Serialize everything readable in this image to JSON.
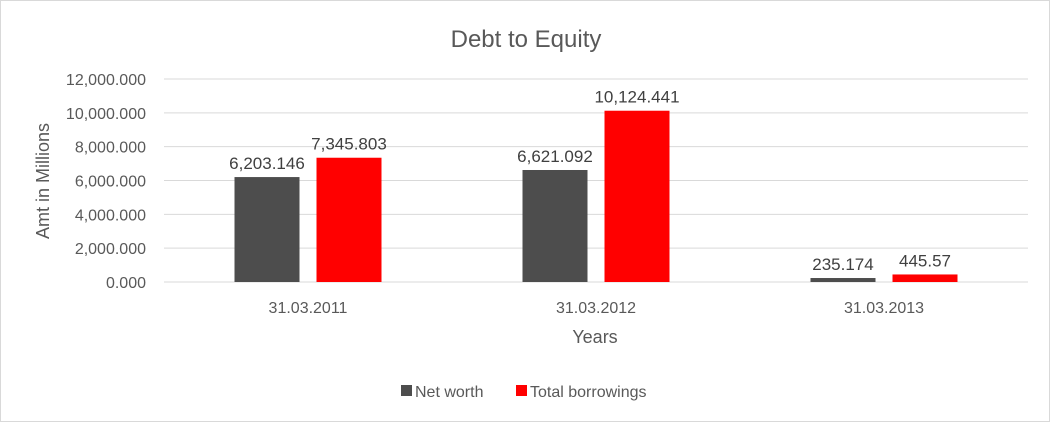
{
  "chart_data": {
    "type": "bar",
    "title": "Debt to Equity",
    "xlabel": "Years",
    "ylabel": "Amt in Millions",
    "categories": [
      "31.03.2011",
      "31.03.2012",
      "31.03.2013"
    ],
    "ylim": [
      0,
      12000
    ],
    "yticks": [
      0,
      2000,
      4000,
      6000,
      8000,
      10000,
      12000
    ],
    "ytick_labels": [
      "0.000",
      "2,000.000",
      "4,000.000",
      "6,000.000",
      "8,000.000",
      "10,000.000",
      "12,000.000"
    ],
    "grid": true,
    "legend_position": "bottom",
    "series": [
      {
        "name": "Net worth",
        "color": "#4d4d4d",
        "values": [
          6203.146,
          6621.092,
          235.174
        ],
        "labels": [
          "6,203.146",
          "6,621.092",
          "235.174"
        ]
      },
      {
        "name": "Total borrowings",
        "color": "#ff0000",
        "values": [
          7345.803,
          10124.441,
          445.57
        ],
        "labels": [
          "7,345.803",
          "10,124.441",
          "445.57"
        ]
      }
    ]
  }
}
